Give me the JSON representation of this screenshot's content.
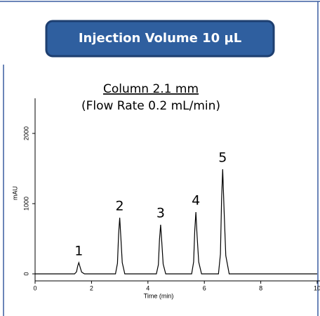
{
  "chart_data": {
    "type": "line",
    "banner": "Injection Volume 10 µL",
    "title": "Column 2.1 mm",
    "subtitle": "(Flow Rate 0.2 mL/min)",
    "x_label": "Time (min)",
    "y_label": "mAU",
    "x": [
      0,
      1.4,
      1.47,
      1.51,
      1.55,
      1.6,
      1.65,
      1.75,
      2.85,
      2.92,
      2.96,
      3.0,
      3.04,
      3.09,
      3.18,
      4.3,
      4.37,
      4.41,
      4.45,
      4.49,
      4.54,
      4.63,
      5.55,
      5.62,
      5.66,
      5.7,
      5.74,
      5.8,
      5.9,
      6.5,
      6.57,
      6.61,
      6.65,
      6.7,
      6.76,
      6.88,
      10
    ],
    "values": [
      0,
      0,
      30,
      110,
      160,
      90,
      25,
      0,
      0,
      150,
      560,
      800,
      520,
      160,
      0,
      0,
      130,
      490,
      700,
      460,
      140,
      0,
      0,
      170,
      620,
      880,
      560,
      170,
      0,
      0,
      280,
      1050,
      1490,
      900,
      260,
      0,
      0
    ],
    "color": "#000000",
    "annotations": [
      {
        "text": "1",
        "x": 1.55,
        "y": 160
      },
      {
        "text": "2",
        "x": 3.0,
        "y": 800
      },
      {
        "text": "3",
        "x": 4.45,
        "y": 700
      },
      {
        "text": "4",
        "x": 5.7,
        "y": 880
      },
      {
        "text": "5",
        "x": 6.65,
        "y": 1490
      }
    ],
    "xlim": [
      0,
      10
    ],
    "xticks": [
      0,
      2,
      4,
      6,
      8,
      10
    ],
    "ylim": [
      -100,
      2500
    ],
    "yticks": [
      0,
      1000,
      2000
    ],
    "grid": false
  }
}
